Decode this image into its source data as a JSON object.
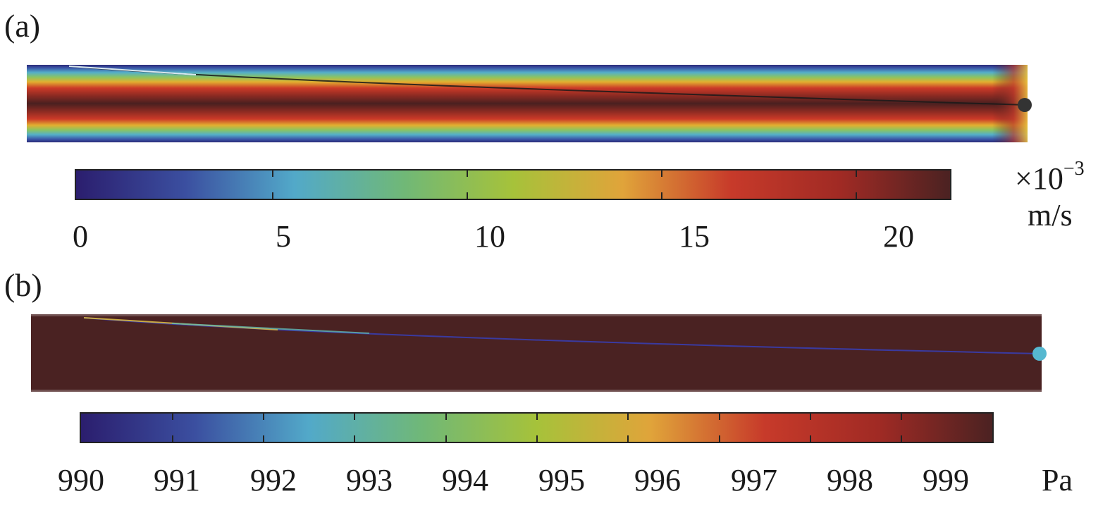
{
  "panel_a": {
    "label": "(a)",
    "colorbar": {
      "ticks": [
        "0",
        "5",
        "10",
        "15",
        "20"
      ],
      "unit_multiplier": "×10",
      "unit_exponent": "−3",
      "unit": "m/s",
      "range": [
        0,
        23
      ],
      "colors": [
        "#2b1e6e",
        "#3b4fa0",
        "#52a9c9",
        "#70b877",
        "#a6c23a",
        "#e0a43a",
        "#c73a2a",
        "#a02a24",
        "#4b2222"
      ]
    }
  },
  "panel_b": {
    "label": "(b)",
    "colorbar": {
      "ticks": [
        "990",
        "991",
        "992",
        "993",
        "994",
        "995",
        "996",
        "997",
        "998",
        "999"
      ],
      "unit": "Pa",
      "range": [
        990,
        1000
      ],
      "colors": [
        "#2b1e6e",
        "#3b4fa0",
        "#52a9c9",
        "#70b877",
        "#a6c23a",
        "#e0a43a",
        "#c73a2a",
        "#a02a24",
        "#4b2222"
      ]
    },
    "field_color": "#4a2222"
  }
}
